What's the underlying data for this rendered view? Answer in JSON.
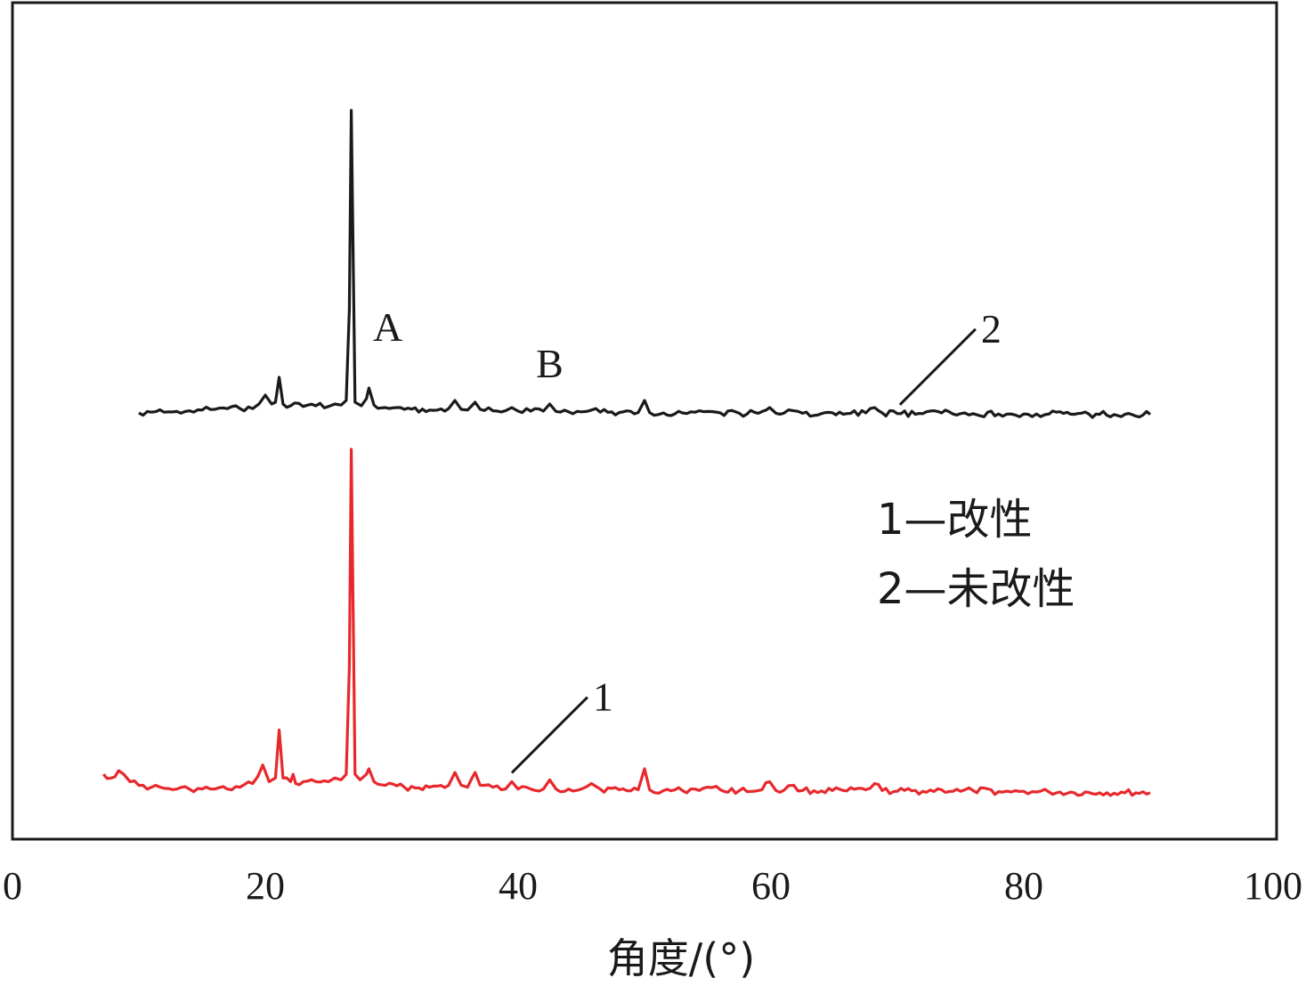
{
  "chart_data": {
    "type": "line",
    "xlabel": "角度/(°)",
    "ylabel": "",
    "xlim": [
      0,
      100
    ],
    "xticks": [
      0,
      20,
      40,
      60,
      80,
      100
    ],
    "x_tick_labels": [
      "0",
      "20",
      "40",
      "60",
      "80",
      "100"
    ],
    "y_ticks_shown": false,
    "grid": false,
    "legend": {
      "placement": "center-right",
      "entries": [
        "1—改性",
        "2—未改性"
      ]
    },
    "annotations": [
      {
        "text": "A",
        "x": 28.1,
        "series": "2"
      },
      {
        "text": "B",
        "x": 42.5,
        "series": "2"
      },
      {
        "text": "1",
        "x": 39.5,
        "series": "1"
      },
      {
        "text": "2",
        "x": 70.2,
        "series": "2"
      }
    ],
    "series": [
      {
        "name": "1",
        "color": "#e8282c",
        "x": [
          7.2,
          7.8,
          8.4,
          8.8,
          9.3,
          10.0,
          11.0,
          12.0,
          13.0,
          14.0,
          15.0,
          16.0,
          17.0,
          18.0,
          19.0,
          19.8,
          20.3,
          20.8,
          21.1,
          21.4,
          22.0,
          22.2,
          22.4,
          23.0,
          24.0,
          25.0,
          25.5,
          26.0,
          26.4,
          26.65,
          26.8,
          27.1,
          27.5,
          28.0,
          28.2,
          28.6,
          29.5,
          31.0,
          33.0,
          34.5,
          35.0,
          35.5,
          36.0,
          36.6,
          37.0,
          38.0,
          39.0,
          39.5,
          40.0,
          41.0,
          42.0,
          42.5,
          43.0,
          44.0,
          45.0,
          45.8,
          46.5,
          48.0,
          49.5,
          50.0,
          50.4,
          51.5,
          53.0,
          54.0,
          55.0,
          56.0,
          57.5,
          59.0,
          59.9,
          60.4,
          61.0,
          61.8,
          62.5,
          64.0,
          66.0,
          67.5,
          68.2,
          68.8,
          70.0,
          72.0,
          73.5,
          75.0,
          76.0,
          78.0,
          79.0,
          80.0,
          81.0,
          82.0,
          84.0,
          86.0,
          88.0,
          90.0
        ],
        "y": [
          0.06,
          0.05,
          0.07,
          0.06,
          0.04,
          0.03,
          0.025,
          0.022,
          0.02,
          0.02,
          0.02,
          0.02,
          0.02,
          0.025,
          0.035,
          0.085,
          0.04,
          0.05,
          0.18,
          0.05,
          0.04,
          0.06,
          0.035,
          0.04,
          0.04,
          0.04,
          0.05,
          0.045,
          0.06,
          0.35,
          0.94,
          0.06,
          0.045,
          0.06,
          0.075,
          0.04,
          0.03,
          0.025,
          0.025,
          0.03,
          0.065,
          0.03,
          0.025,
          0.065,
          0.03,
          0.025,
          0.02,
          0.04,
          0.02,
          0.02,
          0.02,
          0.045,
          0.02,
          0.02,
          0.02,
          0.035,
          0.02,
          0.018,
          0.018,
          0.075,
          0.018,
          0.016,
          0.016,
          0.02,
          0.025,
          0.018,
          0.016,
          0.016,
          0.04,
          0.016,
          0.016,
          0.03,
          0.016,
          0.015,
          0.015,
          0.018,
          0.035,
          0.016,
          0.014,
          0.014,
          0.018,
          0.014,
          0.016,
          0.013,
          0.012,
          0.014,
          0.012,
          0.012,
          0.01,
          0.01,
          0.01,
          0.01
        ]
      },
      {
        "name": "2",
        "color": "#1a1a1a",
        "x": [
          10.0,
          11.0,
          12.0,
          13.0,
          14.0,
          15.0,
          16.0,
          17.0,
          18.0,
          19.0,
          19.5,
          20.0,
          20.5,
          20.8,
          21.1,
          21.4,
          22.0,
          23.0,
          24.0,
          25.0,
          25.5,
          26.0,
          26.4,
          26.65,
          26.8,
          27.1,
          27.6,
          28.0,
          28.2,
          28.6,
          29.5,
          31.0,
          33.0,
          34.5,
          35.0,
          35.5,
          36.0,
          36.6,
          37.0,
          38.0,
          39.0,
          39.5,
          40.0,
          41.0,
          42.0,
          42.5,
          43.0,
          44.0,
          45.0,
          45.8,
          46.5,
          48.0,
          49.5,
          50.0,
          50.4,
          51.5,
          53.0,
          54.0,
          55.0,
          56.0,
          57.5,
          59.0,
          59.9,
          60.4,
          61.0,
          61.8,
          62.5,
          64.0,
          66.0,
          67.5,
          68.2,
          68.8,
          70.0,
          72.0,
          73.5,
          75.0,
          76.0,
          78.0,
          79.0,
          80.0,
          81.0,
          82.0,
          84.0,
          86.0,
          88.0,
          90.0
        ],
        "y": [
          0.01,
          0.012,
          0.012,
          0.014,
          0.016,
          0.018,
          0.02,
          0.022,
          0.022,
          0.022,
          0.035,
          0.06,
          0.035,
          0.04,
          0.11,
          0.035,
          0.03,
          0.028,
          0.03,
          0.028,
          0.035,
          0.032,
          0.045,
          0.3,
          0.86,
          0.04,
          0.03,
          0.05,
          0.08,
          0.032,
          0.025,
          0.02,
          0.018,
          0.022,
          0.045,
          0.02,
          0.018,
          0.04,
          0.02,
          0.016,
          0.016,
          0.025,
          0.015,
          0.015,
          0.015,
          0.035,
          0.014,
          0.013,
          0.013,
          0.018,
          0.012,
          0.011,
          0.011,
          0.045,
          0.011,
          0.01,
          0.01,
          0.012,
          0.014,
          0.01,
          0.009,
          0.009,
          0.025,
          0.009,
          0.009,
          0.016,
          0.009,
          0.008,
          0.008,
          0.01,
          0.025,
          0.01,
          0.008,
          0.008,
          0.01,
          0.008,
          0.008,
          0.007,
          0.007,
          0.007,
          0.007,
          0.007,
          0.006,
          0.006,
          0.006,
          0.006
        ]
      }
    ]
  }
}
